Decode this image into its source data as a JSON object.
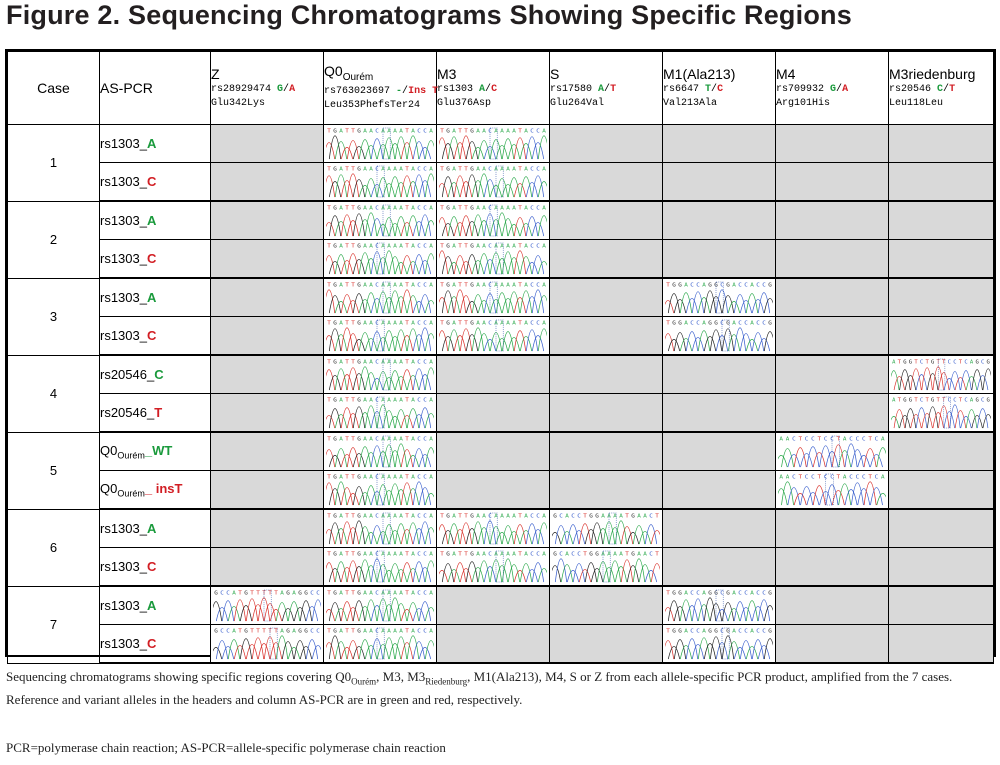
{
  "title": "Figure 2. Sequencing Chromatograms Showing Specific Regions",
  "header": {
    "case": "Case",
    "aspcr": "AS-PCR",
    "loci": [
      {
        "name": "Z",
        "sub": "",
        "rs": "rs28929474",
        "ref": "G",
        "sep": "/",
        "alt": "A",
        "aa": "Glu342Lys"
      },
      {
        "name": "Q0",
        "sub": "Ourém",
        "rs": "rs763023697",
        "ref": "-",
        "sep": "/",
        "alt": "Ins T",
        "aa": "Leu353PhefsTer24"
      },
      {
        "name": "M3",
        "sub": "",
        "rs": "rs1303",
        "ref": "A",
        "sep": "/",
        "alt": "C",
        "aa": "Glu376Asp"
      },
      {
        "name": "S",
        "sub": "",
        "rs": "rs17580",
        "ref": "A",
        "sep": "/",
        "alt": "T",
        "aa": "Glu264Val"
      },
      {
        "name": "M1(Ala213)",
        "sub": "",
        "rs": "rs6647",
        "ref": "T",
        "sep": "/",
        "alt": "C",
        "aa": "Val213Ala"
      },
      {
        "name": "M4",
        "sub": "",
        "rs": "rs709932",
        "ref": "G",
        "sep": "/",
        "alt": "A",
        "aa": "Arg101His"
      },
      {
        "name": "M3riedenburg",
        "sub": "",
        "rs": "rs20546",
        "ref": "C",
        "sep": "/",
        "alt": "T",
        "aa": "Leu118Leu"
      }
    ]
  },
  "rows": [
    {
      "case": "1",
      "prefix": "rs1303_",
      "sub": "",
      "allele": "A",
      "color": "green",
      "cells": [
        0,
        1,
        1,
        0,
        0,
        0,
        0
      ]
    },
    {
      "case": "",
      "prefix": "rs1303_",
      "sub": "",
      "allele": "C",
      "color": "red",
      "cells": [
        0,
        1,
        1,
        0,
        0,
        0,
        0
      ]
    },
    {
      "case": "2",
      "prefix": "rs1303_",
      "sub": "",
      "allele": "A",
      "color": "green",
      "cells": [
        0,
        1,
        1,
        0,
        0,
        0,
        0
      ]
    },
    {
      "case": "",
      "prefix": "rs1303_",
      "sub": "",
      "allele": "C",
      "color": "red",
      "cells": [
        0,
        1,
        1,
        0,
        0,
        0,
        0
      ]
    },
    {
      "case": "3",
      "prefix": "rs1303_",
      "sub": "",
      "allele": "A",
      "color": "green",
      "cells": [
        0,
        1,
        1,
        0,
        1,
        0,
        0
      ]
    },
    {
      "case": "",
      "prefix": "rs1303_",
      "sub": "",
      "allele": "C",
      "color": "red",
      "cells": [
        0,
        1,
        1,
        0,
        1,
        0,
        0
      ]
    },
    {
      "case": "4",
      "prefix": "rs20546_",
      "sub": "",
      "allele": "C",
      "color": "green",
      "cells": [
        0,
        1,
        0,
        0,
        0,
        0,
        1
      ]
    },
    {
      "case": "",
      "prefix": "rs20546_",
      "sub": "",
      "allele": "T",
      "color": "red",
      "cells": [
        0,
        1,
        0,
        0,
        0,
        0,
        1
      ]
    },
    {
      "case": "5",
      "prefix": "Q0",
      "sub": "Ourém",
      "allele": "_WT",
      "color": "green",
      "cells": [
        0,
        1,
        0,
        0,
        0,
        1,
        0
      ]
    },
    {
      "case": "",
      "prefix": "Q0",
      "sub": "Ourém",
      "allele": "_ insT",
      "color": "red",
      "cells": [
        0,
        1,
        0,
        0,
        0,
        1,
        0
      ]
    },
    {
      "case": "6",
      "prefix": "rs1303_",
      "sub": "",
      "allele": "A",
      "color": "green",
      "cells": [
        0,
        1,
        1,
        1,
        0,
        0,
        0
      ]
    },
    {
      "case": "",
      "prefix": "rs1303_",
      "sub": "",
      "allele": "C",
      "color": "red",
      "cells": [
        0,
        1,
        1,
        1,
        0,
        0,
        0
      ]
    },
    {
      "case": "7",
      "prefix": "rs1303_",
      "sub": "",
      "allele": "A",
      "color": "green",
      "cells": [
        1,
        1,
        0,
        0,
        1,
        0,
        0
      ]
    },
    {
      "case": "",
      "prefix": "rs1303_",
      "sub": "",
      "allele": "C",
      "color": "red",
      "cells": [
        1,
        1,
        0,
        0,
        1,
        0,
        0
      ]
    }
  ],
  "chromatogram_seqs": [
    "GCCATGTTTTTAGAGGCC",
    "TGATTGAACAAAATACCA",
    "TGATTGAACAAAATACCA",
    "GCACCTGGAAAATGAACT",
    "TGGACCAGGCGACCACCG",
    "AACTCCTCCTACCCTCA",
    "ATGGTCTGTTCCTCAGCG"
  ],
  "colors": {
    "green": "#1a9a3c",
    "red": "#d21e24",
    "empty": "#d9d9d9"
  },
  "caption": {
    "p1": "Sequencing chromatograms showing specific regions covering Q0",
    "p1_sub": "Ourém",
    "p2": ", M3, M3",
    "p2_sub": "Riedenburg",
    "p3": ", M1(Ala213), M4, S or Z from each allele-specific PCR product, amplified from the 7 cases. Reference and variant alleles in the headers and column AS-PCR are in green and red, respectively."
  },
  "footnote": "PCR=polymerase chain reaction; AS-PCR=allele-specific polymerase chain reaction"
}
